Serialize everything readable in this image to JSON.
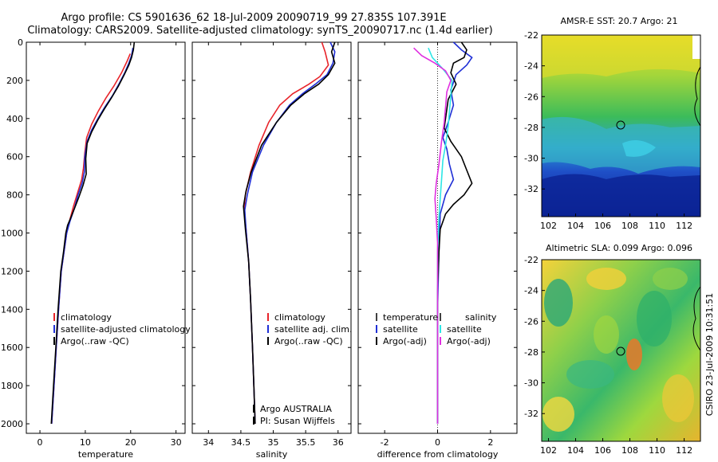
{
  "header": {
    "line1": "Argo profile: CS 5901636_62 18-Jul-2009 20090719_99 27.835S 107.391E",
    "line2": "Climatology: CARS2009. Satellite-adjusted climatology: synTS_20090717.nc (1.4d earlier)"
  },
  "side_label": "CSIRO 23-Jul-2009 10:31:51",
  "colors": {
    "red": "#e8242a",
    "blue": "#1f2fd6",
    "black": "#000000",
    "cyan": "#2ee6e6",
    "magenta": "#e030e0"
  },
  "chart_data": [
    {
      "type": "line",
      "xlabel": "temperature",
      "xticks": [
        "0",
        "10",
        "20",
        "30"
      ],
      "xlim": [
        -3,
        32
      ],
      "yticks": [
        "0",
        "200",
        "400",
        "600",
        "800",
        "1000",
        "1200",
        "1400",
        "1600",
        "1800",
        "2000"
      ],
      "ylim": [
        2050,
        0
      ],
      "legend": [
        "climatology",
        "satellite-adjusted climatology",
        "Argo(..raw -QC)"
      ],
      "series": [
        {
          "name": "climatology",
          "color": "red",
          "points": [
            [
              19.9,
              60
            ],
            [
              19.2,
              100
            ],
            [
              18.0,
              160
            ],
            [
              16.3,
              230
            ],
            [
              14.6,
              290
            ],
            [
              12.9,
              360
            ],
            [
              11.4,
              430
            ],
            [
              10.3,
              500
            ],
            [
              9.9,
              580
            ],
            [
              9.6,
              660
            ],
            [
              9.2,
              720
            ],
            [
              8.3,
              790
            ],
            [
              7.4,
              860
            ],
            [
              6.6,
              930
            ],
            [
              5.9,
              1000
            ],
            [
              5.3,
              1100
            ],
            [
              4.7,
              1200
            ],
            [
              4.1,
              1400
            ],
            [
              3.6,
              1600
            ],
            [
              3.1,
              1800
            ],
            [
              2.6,
              2000
            ]
          ]
        },
        {
          "name": "satellite-adjusted climatology",
          "color": "blue",
          "points": [
            [
              20.5,
              30
            ],
            [
              20.2,
              70
            ],
            [
              19.6,
              110
            ],
            [
              18.7,
              160
            ],
            [
              17.4,
              220
            ],
            [
              16.0,
              280
            ],
            [
              14.3,
              340
            ],
            [
              12.8,
              400
            ],
            [
              11.4,
              460
            ],
            [
              10.4,
              520
            ],
            [
              9.9,
              600
            ],
            [
              9.8,
              680
            ],
            [
              9.3,
              740
            ],
            [
              8.4,
              800
            ],
            [
              7.6,
              870
            ],
            [
              6.6,
              940
            ],
            [
              5.9,
              1000
            ],
            [
              5.3,
              1100
            ],
            [
              4.7,
              1200
            ],
            [
              4.1,
              1400
            ],
            [
              3.6,
              1600
            ],
            [
              3.1,
              1800
            ],
            [
              2.6,
              2000
            ]
          ]
        },
        {
          "name": "Argo(..raw -QC)",
          "color": "black",
          "points": [
            [
              20.8,
              0
            ],
            [
              20.6,
              40
            ],
            [
              20.2,
              80
            ],
            [
              19.6,
              120
            ],
            [
              18.6,
              170
            ],
            [
              17.3,
              230
            ],
            [
              15.8,
              290
            ],
            [
              14.2,
              350
            ],
            [
              12.7,
              410
            ],
            [
              11.4,
              470
            ],
            [
              10.4,
              530
            ],
            [
              10.1,
              610
            ],
            [
              10.2,
              690
            ],
            [
              9.5,
              750
            ],
            [
              8.6,
              810
            ],
            [
              7.8,
              860
            ],
            [
              6.8,
              920
            ],
            [
              6.1,
              960
            ],
            [
              5.7,
              1000
            ],
            [
              5.2,
              1100
            ],
            [
              4.6,
              1200
            ],
            [
              4.0,
              1400
            ],
            [
              3.5,
              1600
            ],
            [
              3.0,
              1800
            ],
            [
              2.5,
              2000
            ]
          ]
        }
      ]
    },
    {
      "type": "line",
      "xlabel": "salinity",
      "xticks": [
        "34",
        "34.5",
        "35",
        "35.5",
        "36"
      ],
      "xlim": [
        33.75,
        36.2
      ],
      "yticks": [],
      "ylim": [
        2050,
        0
      ],
      "legend": [
        "climatology",
        "satellite adj. clim.",
        "Argo(..raw -QC)"
      ],
      "annotations": [
        "Argo AUSTRALIA",
        "PI: Susan Wijffels"
      ],
      "series": [
        {
          "name": "climatology",
          "color": "red",
          "points": [
            [
              35.75,
              0
            ],
            [
              35.8,
              50
            ],
            [
              35.85,
              120
            ],
            [
              35.72,
              180
            ],
            [
              35.55,
              220
            ],
            [
              35.3,
              270
            ],
            [
              35.1,
              330
            ],
            [
              34.93,
              420
            ],
            [
              34.78,
              540
            ],
            [
              34.65,
              680
            ],
            [
              34.57,
              800
            ],
            [
              34.55,
              880
            ],
            [
              34.58,
              980
            ],
            [
              34.62,
              1150
            ],
            [
              34.65,
              1350
            ],
            [
              34.68,
              1600
            ],
            [
              34.7,
              1800
            ],
            [
              34.72,
              2000
            ]
          ]
        },
        {
          "name": "satellite adj. clim.",
          "color": "blue",
          "points": [
            [
              35.88,
              0
            ],
            [
              35.95,
              50
            ],
            [
              35.92,
              110
            ],
            [
              35.83,
              170
            ],
            [
              35.65,
              220
            ],
            [
              35.45,
              270
            ],
            [
              35.25,
              330
            ],
            [
              35.05,
              420
            ],
            [
              34.85,
              540
            ],
            [
              34.68,
              680
            ],
            [
              34.6,
              800
            ],
            [
              34.56,
              880
            ],
            [
              34.58,
              980
            ],
            [
              34.62,
              1150
            ],
            [
              34.65,
              1350
            ],
            [
              34.68,
              1600
            ],
            [
              34.7,
              1800
            ],
            [
              34.72,
              2000
            ]
          ]
        },
        {
          "name": "Argo(..raw -QC)",
          "color": "black",
          "points": [
            [
              35.95,
              0
            ],
            [
              35.9,
              50
            ],
            [
              35.95,
              110
            ],
            [
              35.85,
              170
            ],
            [
              35.7,
              220
            ],
            [
              35.48,
              270
            ],
            [
              35.27,
              330
            ],
            [
              35.05,
              420
            ],
            [
              34.82,
              540
            ],
            [
              34.66,
              680
            ],
            [
              34.58,
              780
            ],
            [
              34.54,
              860
            ],
            [
              34.57,
              980
            ],
            [
              34.62,
              1150
            ],
            [
              34.65,
              1350
            ],
            [
              34.68,
              1600
            ],
            [
              34.7,
              1800
            ],
            [
              34.72,
              2000
            ]
          ]
        }
      ]
    },
    {
      "type": "line",
      "xlabel": "difference from climatology",
      "xticks": [
        "-2",
        "0",
        "2"
      ],
      "xlim": [
        -3,
        3
      ],
      "yticks": [],
      "ylim": [
        2050,
        0
      ],
      "legend_groups": [
        {
          "title": "temperature",
          "entries": [
            "satellite",
            "Argo(-adj)"
          ]
        },
        {
          "title": "salinity",
          "entries": [
            "satellite",
            "Argo(-adj)"
          ]
        }
      ],
      "series": [
        {
          "name": "temperature satellite",
          "color": "blue",
          "points": [
            [
              0.6,
              0
            ],
            [
              0.9,
              40
            ],
            [
              1.3,
              80
            ],
            [
              1.1,
              120
            ],
            [
              0.7,
              170
            ],
            [
              0.5,
              250
            ],
            [
              0.6,
              330
            ],
            [
              0.4,
              420
            ],
            [
              0.2,
              500
            ],
            [
              0.35,
              560
            ],
            [
              0.45,
              640
            ],
            [
              0.6,
              720
            ],
            [
              0.3,
              800
            ],
            [
              0.1,
              900
            ],
            [
              0.05,
              1100
            ],
            [
              0.0,
              1400
            ],
            [
              0.0,
              1700
            ],
            [
              0.0,
              2000
            ]
          ]
        },
        {
          "name": "temperature Argo(-adj)",
          "color": "black",
          "points": [
            [
              0.9,
              0
            ],
            [
              1.1,
              40
            ],
            [
              1.0,
              80
            ],
            [
              0.6,
              110
            ],
            [
              0.5,
              160
            ],
            [
              0.7,
              220
            ],
            [
              0.4,
              300
            ],
            [
              0.3,
              400
            ],
            [
              0.25,
              450
            ],
            [
              0.5,
              520
            ],
            [
              0.9,
              600
            ],
            [
              1.1,
              670
            ],
            [
              1.3,
              740
            ],
            [
              1.0,
              800
            ],
            [
              0.6,
              850
            ],
            [
              0.3,
              900
            ],
            [
              0.1,
              980
            ],
            [
              0.05,
              1100
            ],
            [
              0.0,
              1300
            ],
            [
              0.0,
              1600
            ],
            [
              0.0,
              2000
            ]
          ]
        },
        {
          "name": "salinity satellite",
          "color": "cyan",
          "points": [
            [
              -0.35,
              30
            ],
            [
              -0.2,
              80
            ],
            [
              0.2,
              140
            ],
            [
              0.55,
              200
            ],
            [
              0.5,
              280
            ],
            [
              0.45,
              360
            ],
            [
              0.4,
              440
            ],
            [
              0.3,
              540
            ],
            [
              0.2,
              620
            ],
            [
              0.15,
              720
            ],
            [
              0.1,
              820
            ],
            [
              0.05,
              920
            ],
            [
              0.0,
              1100
            ],
            [
              0.0,
              1500
            ],
            [
              0.0,
              2000
            ]
          ]
        },
        {
          "name": "salinity Argo(-adj)",
          "color": "magenta",
          "points": [
            [
              -0.9,
              30
            ],
            [
              -0.6,
              70
            ],
            [
              -0.1,
              110
            ],
            [
              0.3,
              150
            ],
            [
              0.5,
              200
            ],
            [
              0.35,
              260
            ],
            [
              0.3,
              340
            ],
            [
              0.25,
              420
            ],
            [
              0.15,
              520
            ],
            [
              0.05,
              640
            ],
            [
              -0.05,
              740
            ],
            [
              -0.1,
              820
            ],
            [
              -0.05,
              920
            ],
            [
              0.0,
              1050
            ],
            [
              0.0,
              1400
            ],
            [
              0.0,
              2000
            ]
          ]
        }
      ]
    },
    {
      "type": "heatmap",
      "title": "AMSR-E SST: 20.7 Argo: 21",
      "xticks": [
        "102",
        "104",
        "106",
        "108",
        "110",
        "112"
      ],
      "yticks": [
        "-22",
        "-24",
        "-26",
        "-28",
        "-30",
        "-32"
      ],
      "xlim": [
        101.5,
        113.2
      ],
      "ylim": [
        -33.8,
        -22
      ]
    },
    {
      "type": "heatmap",
      "title": "Altimetric SLA: 0.099 Argo: 0.096",
      "xticks": [
        "102",
        "104",
        "106",
        "108",
        "110",
        "112"
      ],
      "yticks": [
        "-22",
        "-24",
        "-26",
        "-28",
        "-30",
        "-32"
      ],
      "xlim": [
        101.5,
        113.2
      ],
      "ylim": [
        -33.8,
        -22
      ]
    }
  ]
}
